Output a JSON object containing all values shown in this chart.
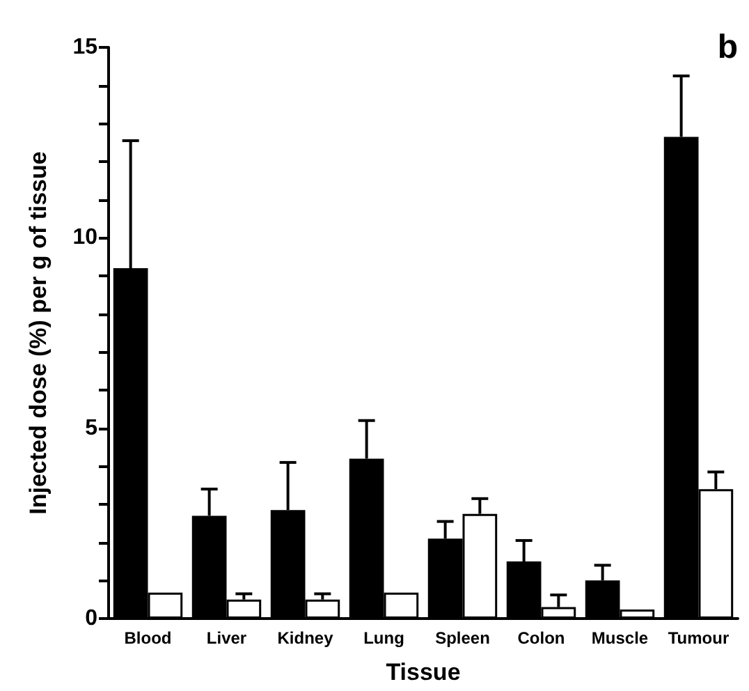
{
  "chart_data": {
    "type": "bar",
    "xlabel": "Tissue",
    "ylabel": "Injected dose (%) per g of tissue",
    "annotations": [
      "b"
    ],
    "categories": [
      "Blood",
      "Liver",
      "Kidney",
      "Lung",
      "Spleen",
      "Colon",
      "Muscle",
      "Tumour"
    ],
    "series": [
      {
        "color": "#000000",
        "values": [
          9.2,
          2.7,
          2.85,
          4.2,
          2.1,
          1.5,
          1.0,
          12.65
        ],
        "errors": [
          [
            9.2,
            12.55
          ],
          [
            2.7,
            3.4
          ],
          [
            2.85,
            4.1
          ],
          [
            4.2,
            5.2
          ],
          [
            2.1,
            2.55
          ],
          [
            1.5,
            2.05
          ],
          [
            1.0,
            1.4
          ],
          [
            12.65,
            14.25
          ]
        ]
      },
      {
        "color": "#ffffff",
        "values": [
          0.68,
          0.5,
          0.5,
          0.68,
          2.75,
          0.3,
          0.24,
          3.4
        ],
        "errors": [
          null,
          [
            0.5,
            0.65
          ],
          [
            0.5,
            0.65
          ],
          null,
          [
            2.75,
            3.15
          ],
          [
            0.3,
            0.62
          ],
          null,
          [
            3.4,
            3.85
          ]
        ]
      }
    ],
    "ylim": [
      0,
      15
    ],
    "yticks": [
      0,
      {
        "value": 1,
        "label": null
      },
      {
        "value": 2,
        "label": null
      },
      {
        "value": 3,
        "label": null
      },
      {
        "value": 4,
        "label": null
      },
      5,
      {
        "value": 6,
        "label": null
      },
      {
        "value": 7,
        "label": null
      },
      {
        "value": 8,
        "label": null
      },
      {
        "value": 9,
        "label": null
      },
      10,
      {
        "value": 11,
        "label": null
      },
      {
        "value": 12,
        "label": null
      },
      {
        "value": 13,
        "label": null
      },
      {
        "value": 14,
        "label": null
      },
      15
    ]
  }
}
